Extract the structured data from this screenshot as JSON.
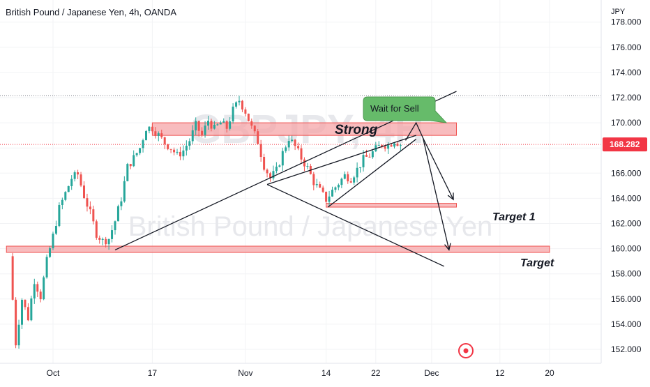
{
  "title": "British Pound / Japanese Yen, 4h, OANDA",
  "currency": "JPY",
  "watermark": {
    "symbol": "GBPJPY, 4H",
    "name": "British Pound / Japanese Yen"
  },
  "colors": {
    "bull": "#26a69a",
    "bear": "#ef5350",
    "zone_fill": "#f5a5a8",
    "zone_edge": "#ef5350",
    "price_label": "#f23645",
    "callout": "#66bb6a"
  },
  "annotations": {
    "strong": "Strong",
    "wait_for_sell": "Wait for Sell",
    "target1": "Target 1",
    "target": "Target"
  },
  "chart_data": {
    "type": "candlestick",
    "title": "British Pound / Japanese Yen, 4h, OANDA",
    "ylim": [
      150.8,
      179
    ],
    "y_ticks": [
      "152.000",
      "154.000",
      "156.000",
      "158.000",
      "160.000",
      "162.000",
      "164.000",
      "166.000",
      "168.000",
      "170.000",
      "172.000",
      "174.000",
      "176.000",
      "178.000"
    ],
    "x_ticks": [
      {
        "label": "Oct",
        "day": 0
      },
      {
        "label": "17",
        "day": 16
      },
      {
        "label": "Nov",
        "day": 31
      },
      {
        "label": "14",
        "day": 44
      },
      {
        "label": "22",
        "day": 52
      },
      {
        "label": "Dec",
        "day": 61
      },
      {
        "label": "12",
        "day": 72
      },
      {
        "label": "20",
        "day": 80
      }
    ],
    "last_price": 168.282,
    "prev_high": 172.15,
    "path": [
      [
        -7,
        159.4
      ],
      [
        -6,
        152.5
      ],
      [
        -5,
        156.0
      ],
      [
        -4,
        154.5
      ],
      [
        -3,
        157.5
      ],
      [
        -2,
        156.2
      ],
      [
        -1,
        159.0
      ],
      [
        0,
        161.0
      ],
      [
        1,
        163.2
      ],
      [
        2,
        164.4
      ],
      [
        3,
        165.6
      ],
      [
        4,
        165.9
      ],
      [
        5,
        164.2
      ],
      [
        6,
        162.8
      ],
      [
        7,
        161.2
      ],
      [
        8,
        160.6
      ],
      [
        9,
        160.8
      ],
      [
        10,
        162.2
      ],
      [
        11,
        164.0
      ],
      [
        12,
        166.5
      ],
      [
        13,
        167.2
      ],
      [
        14,
        168.0
      ],
      [
        15,
        169.6
      ],
      [
        16,
        169.6
      ],
      [
        17,
        169.0
      ],
      [
        18,
        168.4
      ],
      [
        19,
        168.0
      ],
      [
        20,
        167.4
      ],
      [
        21,
        167.8
      ],
      [
        22,
        168.6
      ],
      [
        23,
        169.8
      ],
      [
        24,
        169.0
      ],
      [
        25,
        170.2
      ],
      [
        26,
        169.5
      ],
      [
        27,
        170.0
      ],
      [
        28,
        169.6
      ],
      [
        29,
        171.0
      ],
      [
        30,
        171.8
      ],
      [
        31,
        170.9
      ],
      [
        32,
        169.6
      ],
      [
        33,
        168.5
      ],
      [
        34,
        166.6
      ],
      [
        35,
        165.6
      ],
      [
        36,
        166.2
      ],
      [
        37,
        167.6
      ],
      [
        38,
        168.8
      ],
      [
        39,
        168.1
      ],
      [
        40,
        167.2
      ],
      [
        41,
        166.4
      ],
      [
        42,
        165.3
      ],
      [
        43,
        164.6
      ],
      [
        44,
        163.9
      ],
      [
        45,
        164.6
      ],
      [
        46,
        165.2
      ],
      [
        47,
        165.8
      ],
      [
        48,
        165.6
      ],
      [
        49,
        166.3
      ],
      [
        50,
        167.1
      ],
      [
        51,
        167.4
      ],
      [
        52,
        167.9
      ],
      [
        53,
        168.3
      ],
      [
        54,
        168.2
      ],
      [
        55,
        168.6
      ],
      [
        56,
        168.28
      ]
    ],
    "zones": [
      {
        "label": "Strong",
        "top": 170.0,
        "bottom": 169.0,
        "from_day": 16,
        "to_day": 65
      },
      {
        "label": "Target 1",
        "top": 163.6,
        "bottom": 163.3,
        "from_day": 44,
        "to_day": 65
      },
      {
        "label": "Target",
        "top": 160.2,
        "bottom": 159.7,
        "from_day": -7.5,
        "to_day": 80
      }
    ],
    "trendlines": [
      {
        "name": "wedge-upper",
        "from": [
          10,
          159.9
        ],
        "to": [
          65,
          172.5
        ]
      },
      {
        "name": "upper-channel",
        "from": [
          34.5,
          165.1
        ],
        "to": [
          58.5,
          169.0
        ]
      },
      {
        "name": "lower-channel",
        "from": [
          44.3,
          163.3
        ],
        "to": [
          58.5,
          168.7
        ]
      },
      {
        "name": "channel-lower-extension",
        "from": [
          34.5,
          165.1
        ],
        "to": [
          63,
          158.6
        ]
      }
    ],
    "projection": {
      "path": [
        [
          56.8,
          168.6
        ],
        [
          58.5,
          170.0
        ],
        [
          59.6,
          168.8
        ],
        [
          64.5,
          163.9
        ]
      ],
      "second_leg": [
        [
          59.6,
          168.8
        ],
        [
          63.8,
          159.9
        ]
      ]
    }
  }
}
